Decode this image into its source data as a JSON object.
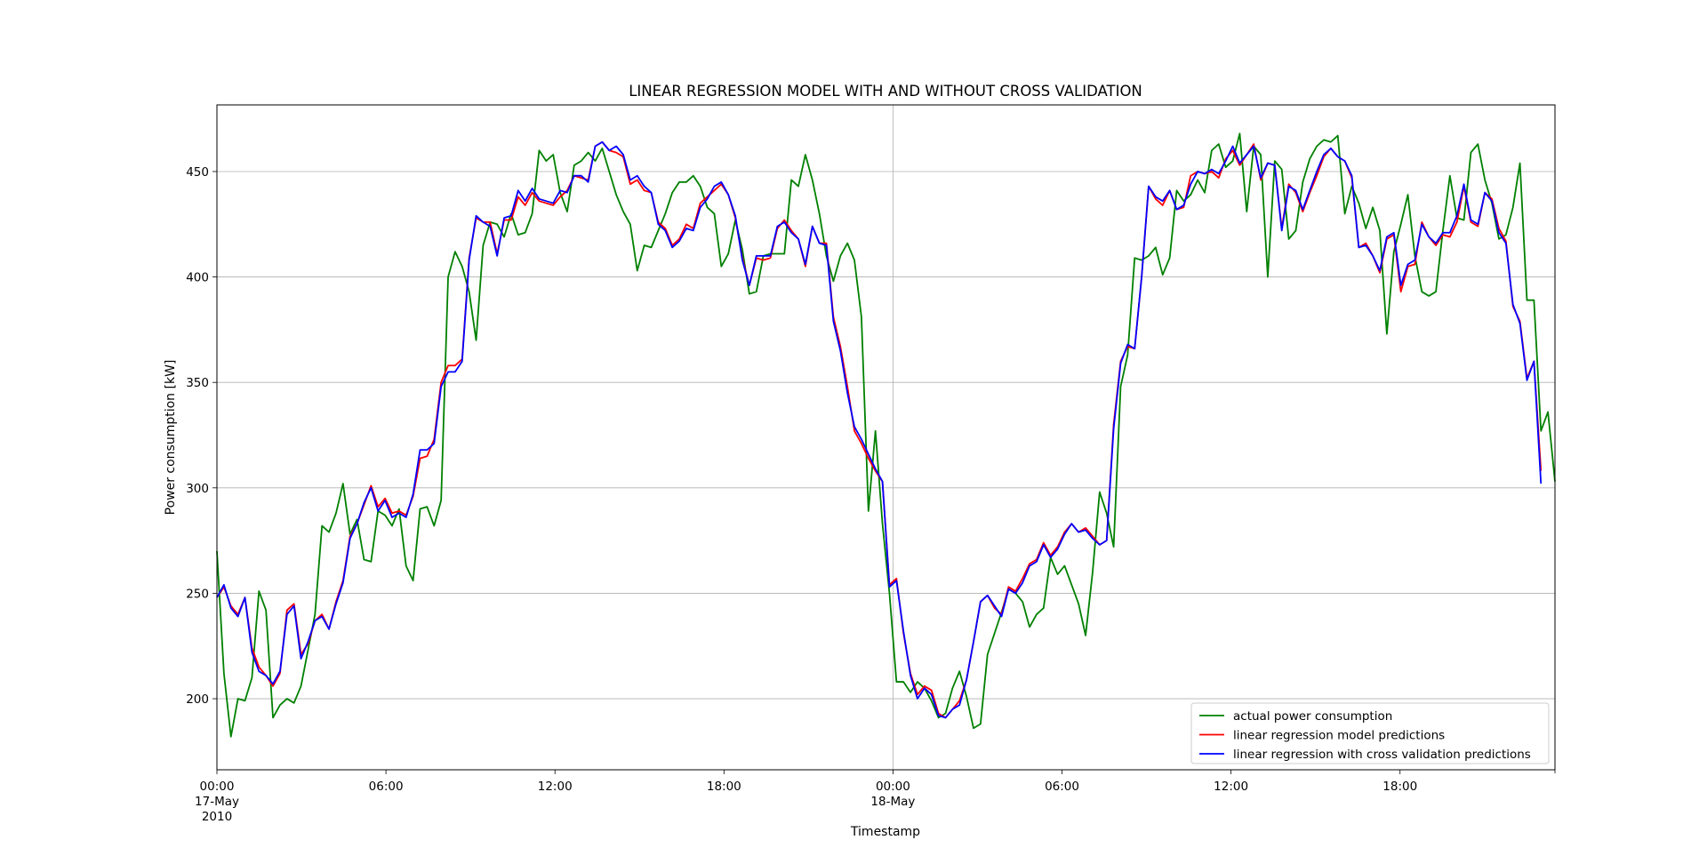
{
  "chart_data": {
    "type": "line",
    "title": "LINEAR REGRESSION MODEL WITH AND WITHOUT CROSS VALIDATION",
    "xlabel": "Timestamp",
    "ylabel": "Power consumption [kW]",
    "ylim": [
      166.3,
      481.6
    ],
    "y_ticks": [
      200,
      250,
      300,
      350,
      400,
      450
    ],
    "x_start": "2010-05-17 00:00",
    "x_end": "2010-05-18 23:30",
    "x_interval": "30min",
    "x_ticks": [
      {
        "time": "2010-05-17 00:00",
        "lines": [
          "00:00",
          "17-May",
          "2010"
        ]
      },
      {
        "time": "2010-05-17 06:00",
        "lines": [
          "06:00"
        ]
      },
      {
        "time": "2010-05-17 12:00",
        "lines": [
          "12:00"
        ]
      },
      {
        "time": "2010-05-17 18:00",
        "lines": [
          "18:00"
        ]
      },
      {
        "time": "2010-05-18 00:00",
        "lines": [
          "00:00",
          "18-May"
        ]
      },
      {
        "time": "2010-05-18 06:00",
        "lines": [
          "06:00"
        ]
      },
      {
        "time": "2010-05-18 12:00",
        "lines": [
          "12:00"
        ]
      },
      {
        "time": "2010-05-18 18:00",
        "lines": [
          "18:00"
        ]
      }
    ],
    "grid": true,
    "legend_position": "bottom-right",
    "series": [
      {
        "name": "actual power consumption",
        "color": "#008000",
        "values": [
          270,
          212,
          182,
          200,
          199,
          210,
          251,
          242,
          191,
          197,
          200,
          198,
          206,
          223,
          240,
          282,
          279,
          288,
          302,
          278,
          285,
          266,
          265,
          289,
          287,
          282,
          290,
          263,
          256,
          290,
          291,
          282,
          294,
          400,
          412,
          405,
          393,
          370,
          415,
          426,
          425,
          419,
          430,
          420,
          421,
          430,
          460,
          455,
          458,
          440,
          431,
          453,
          455,
          459,
          455,
          461,
          450,
          439,
          431,
          425,
          403,
          415,
          414,
          422,
          430,
          440,
          445,
          445,
          448,
          443,
          433,
          430,
          405,
          411,
          427,
          413,
          392,
          393,
          410,
          411,
          411,
          411,
          446,
          443,
          458,
          446,
          430,
          410,
          398,
          410,
          416,
          408,
          381,
          289,
          327,
          283,
          250,
          208,
          208,
          203,
          208,
          205,
          199,
          191,
          193,
          205,
          213,
          201,
          186,
          188,
          221,
          231,
          241,
          252,
          250,
          246,
          234,
          240,
          243,
          267,
          259,
          263,
          254,
          245,
          230,
          260,
          298,
          288,
          272,
          348,
          363,
          409,
          408,
          410,
          414,
          401,
          409,
          441,
          436,
          439,
          446,
          440,
          460,
          463,
          452,
          455,
          468,
          431,
          462,
          458,
          400,
          455,
          451,
          418,
          422,
          445,
          456,
          462,
          465,
          464,
          467,
          430,
          443,
          435,
          423,
          433,
          422,
          373,
          412,
          425,
          439,
          410,
          393,
          391,
          393,
          422,
          448,
          428,
          427,
          459,
          463,
          446,
          435,
          418,
          420,
          433,
          454,
          389,
          389,
          327,
          336,
          303
        ]
      },
      {
        "name": "linear regression model predictions",
        "color": "#ff0000",
        "values": [
          248,
          253,
          244,
          240,
          248,
          224,
          215,
          211,
          206,
          212,
          242,
          245,
          221,
          226,
          237,
          240,
          233,
          246,
          256,
          277,
          283,
          292,
          301,
          291,
          295,
          288,
          289,
          287,
          296,
          314,
          315,
          323,
          350,
          358,
          358,
          361,
          409,
          428,
          426,
          426,
          411,
          427,
          427,
          438,
          434,
          440,
          436,
          435,
          434,
          438,
          441,
          448,
          447,
          446,
          462,
          464,
          460,
          459,
          457,
          444,
          446,
          441,
          440,
          426,
          423,
          415,
          418,
          425,
          423,
          435,
          438,
          441,
          444,
          439,
          428,
          409,
          396,
          409,
          408,
          409,
          423,
          427,
          422,
          418,
          405,
          424,
          416,
          416,
          381,
          367,
          348,
          327,
          321,
          314,
          308,
          303,
          254,
          257,
          231,
          212,
          202,
          206,
          204,
          193,
          191,
          195,
          199,
          209,
          227,
          246,
          249,
          243,
          240,
          253,
          251,
          257,
          264,
          266,
          274,
          268,
          272,
          279,
          283,
          279,
          281,
          277,
          273,
          275,
          330,
          360,
          367,
          366,
          400,
          443,
          437,
          434,
          441,
          432,
          433,
          448,
          450,
          449,
          450,
          447,
          456,
          460,
          453,
          458,
          463,
          446,
          454,
          453,
          423,
          444,
          440,
          431,
          440,
          448,
          457,
          461,
          457,
          455,
          447,
          414,
          416,
          410,
          402,
          418,
          420,
          393,
          405,
          406,
          426,
          419,
          415,
          420,
          419,
          426,
          443,
          426,
          424,
          440,
          437,
          423,
          417,
          386,
          379,
          352,
          360,
          308
        ]
      },
      {
        "name": "linear regression with cross validation predictions",
        "color": "#0000ff",
        "values": [
          248,
          254,
          243,
          239,
          248,
          222,
          213,
          211,
          207,
          213,
          240,
          244,
          219,
          227,
          237,
          239,
          233,
          245,
          255,
          276,
          283,
          293,
          300,
          289,
          294,
          286,
          288,
          286,
          297,
          318,
          318,
          321,
          348,
          355,
          355,
          360,
          408,
          429,
          426,
          424,
          410,
          428,
          429,
          441,
          436,
          442,
          437,
          436,
          435,
          441,
          440,
          448,
          448,
          445,
          462,
          464,
          460,
          462,
          458,
          446,
          448,
          443,
          440,
          425,
          422,
          414,
          417,
          423,
          422,
          433,
          437,
          443,
          445,
          439,
          429,
          408,
          396,
          410,
          410,
          410,
          424,
          426,
          421,
          418,
          406,
          424,
          416,
          415,
          379,
          365,
          345,
          329,
          323,
          316,
          309,
          303,
          253,
          256,
          232,
          211,
          200,
          205,
          202,
          192,
          191,
          195,
          197,
          209,
          227,
          246,
          249,
          244,
          239,
          252,
          250,
          255,
          263,
          265,
          273,
          267,
          271,
          278,
          283,
          279,
          280,
          276,
          273,
          275,
          328,
          359,
          368,
          366,
          400,
          443,
          438,
          436,
          441,
          432,
          434,
          444,
          450,
          449,
          451,
          449,
          455,
          462,
          454,
          458,
          462,
          447,
          454,
          453,
          422,
          443,
          441,
          432,
          441,
          450,
          458,
          461,
          457,
          455,
          448,
          414,
          415,
          410,
          403,
          419,
          421,
          396,
          406,
          408,
          425,
          419,
          416,
          421,
          421,
          429,
          444,
          427,
          425,
          440,
          436,
          421,
          416,
          387,
          378,
          351,
          360,
          302
        ]
      }
    ]
  }
}
